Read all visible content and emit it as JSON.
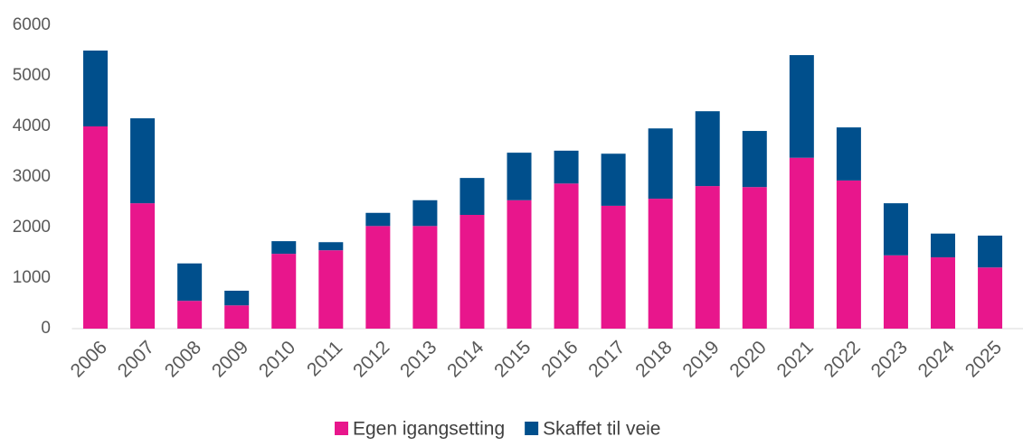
{
  "chart_data": {
    "type": "stacked_bar",
    "categories": [
      "2006",
      "2007",
      "2008",
      "2009",
      "2010",
      "2011",
      "2012",
      "2013",
      "2014",
      "2015",
      "2016",
      "2017",
      "2018",
      "2019",
      "2020",
      "2021",
      "2022",
      "2023",
      "2024",
      "2025"
    ],
    "series": [
      {
        "name": "Egen igangsetting",
        "color": "#e8168c",
        "values": [
          4000,
          2480,
          550,
          460,
          1480,
          1550,
          2030,
          2030,
          2250,
          2540,
          2870,
          2430,
          2570,
          2820,
          2800,
          3380,
          2930,
          1450,
          1410,
          1210
        ]
      },
      {
        "name": "Skaffet til veie",
        "color": "#004f8c",
        "values": [
          1500,
          1680,
          740,
          290,
          250,
          160,
          260,
          510,
          730,
          940,
          650,
          1030,
          1390,
          1480,
          1110,
          2030,
          1050,
          1030,
          470,
          630
        ]
      }
    ],
    "ylim": [
      0,
      6000
    ],
    "yticks": [
      0,
      1000,
      2000,
      3000,
      4000,
      5000,
      6000
    ],
    "grid": false,
    "legend": "bottom"
  }
}
